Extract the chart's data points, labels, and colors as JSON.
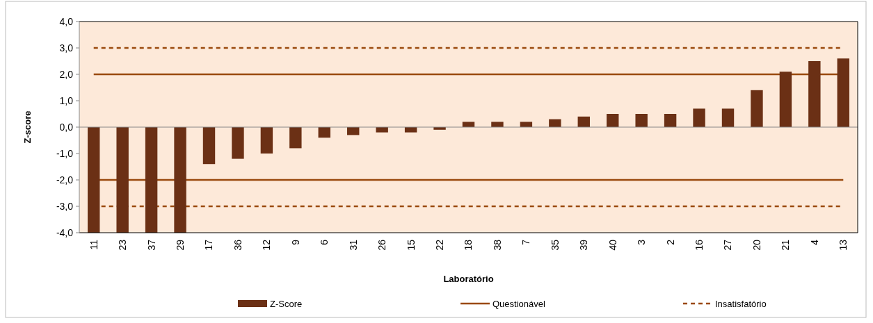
{
  "chart_data": {
    "type": "bar",
    "xlabel": "Laboratório",
    "ylabel": "Z-score",
    "categories": [
      "11",
      "23",
      "37",
      "29",
      "17",
      "36",
      "12",
      "9",
      "6",
      "31",
      "26",
      "15",
      "22",
      "18",
      "38",
      "7",
      "35",
      "39",
      "40",
      "3",
      "2",
      "16",
      "27",
      "20",
      "21",
      "4",
      "13"
    ],
    "series": [
      {
        "name": "Z-Score",
        "color": "#6b3015",
        "values": [
          -4.0,
          -4.0,
          -4.0,
          -4.0,
          -1.4,
          -1.2,
          -1.0,
          -0.8,
          -0.4,
          -0.3,
          -0.2,
          -0.2,
          -0.1,
          0.2,
          0.2,
          0.2,
          0.3,
          0.4,
          0.5,
          0.5,
          0.5,
          0.7,
          0.7,
          1.4,
          2.1,
          2.5,
          2.6
        ]
      }
    ],
    "ylim": [
      -4,
      4
    ],
    "yticks": [
      {
        "value": -4,
        "label": "-4,0"
      },
      {
        "value": -3,
        "label": "-3,0"
      },
      {
        "value": -2,
        "label": "-2,0"
      },
      {
        "value": -1,
        "label": "-1,0"
      },
      {
        "value": 0,
        "label": "0,0"
      },
      {
        "value": 1,
        "label": "1,0"
      },
      {
        "value": 2,
        "label": "2,0"
      },
      {
        "value": 3,
        "label": "3,0"
      },
      {
        "value": 4,
        "label": "4,0"
      }
    ],
    "ref_lines": [
      {
        "axis": "y",
        "value": 2,
        "label": "Questionável",
        "color": "#9a4a0e",
        "line_style": "solid"
      },
      {
        "axis": "y",
        "value": -2,
        "color": "#9a4a0e",
        "line_style": "solid"
      },
      {
        "axis": "y",
        "value": 3,
        "label": "Insatisfatório",
        "color": "#9a4a0e",
        "line_style": "dashed"
      },
      {
        "axis": "y",
        "value": -3,
        "color": "#9a4a0e",
        "line_style": "dashed"
      }
    ],
    "grid": false,
    "legend": "bottom"
  }
}
